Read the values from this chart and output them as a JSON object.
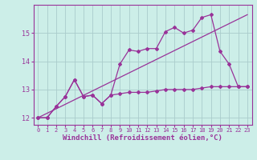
{
  "background_color": "#cceee8",
  "grid_color": "#aacccc",
  "line_color": "#993399",
  "xlabel": "Windchill (Refroidissement éolien,°C)",
  "xlim": [
    -0.5,
    23.5
  ],
  "ylim": [
    11.75,
    16.0
  ],
  "yticks": [
    12,
    13,
    14,
    15
  ],
  "xticks": [
    0,
    1,
    2,
    3,
    4,
    5,
    6,
    7,
    8,
    9,
    10,
    11,
    12,
    13,
    14,
    15,
    16,
    17,
    18,
    19,
    20,
    21,
    22,
    23
  ],
  "series1_x": [
    0,
    1,
    2,
    3,
    4,
    5,
    6,
    7,
    8,
    9,
    10,
    11,
    12,
    13,
    14,
    15,
    16,
    17,
    18,
    19,
    20,
    21,
    22,
    23
  ],
  "series1_y": [
    12.0,
    12.0,
    12.4,
    12.75,
    13.35,
    12.75,
    12.8,
    12.5,
    12.8,
    12.85,
    12.9,
    12.9,
    12.9,
    12.95,
    13.0,
    13.0,
    13.0,
    13.0,
    13.05,
    13.1,
    13.1,
    13.1,
    13.1,
    13.1
  ],
  "series2_x": [
    0,
    1,
    2,
    3,
    4,
    5,
    6,
    7,
    8,
    9,
    10,
    11,
    12,
    13,
    14,
    15,
    16,
    17,
    18,
    19,
    20,
    21,
    22,
    23
  ],
  "series2_y": [
    12.0,
    12.0,
    12.4,
    12.75,
    13.35,
    12.75,
    12.8,
    12.5,
    12.8,
    13.9,
    14.4,
    14.35,
    14.45,
    14.45,
    15.05,
    15.2,
    15.0,
    15.1,
    15.55,
    15.65,
    14.35,
    13.9,
    13.1,
    13.1
  ],
  "series3_x": [
    0,
    23
  ],
  "series3_y": [
    12.0,
    15.65
  ]
}
